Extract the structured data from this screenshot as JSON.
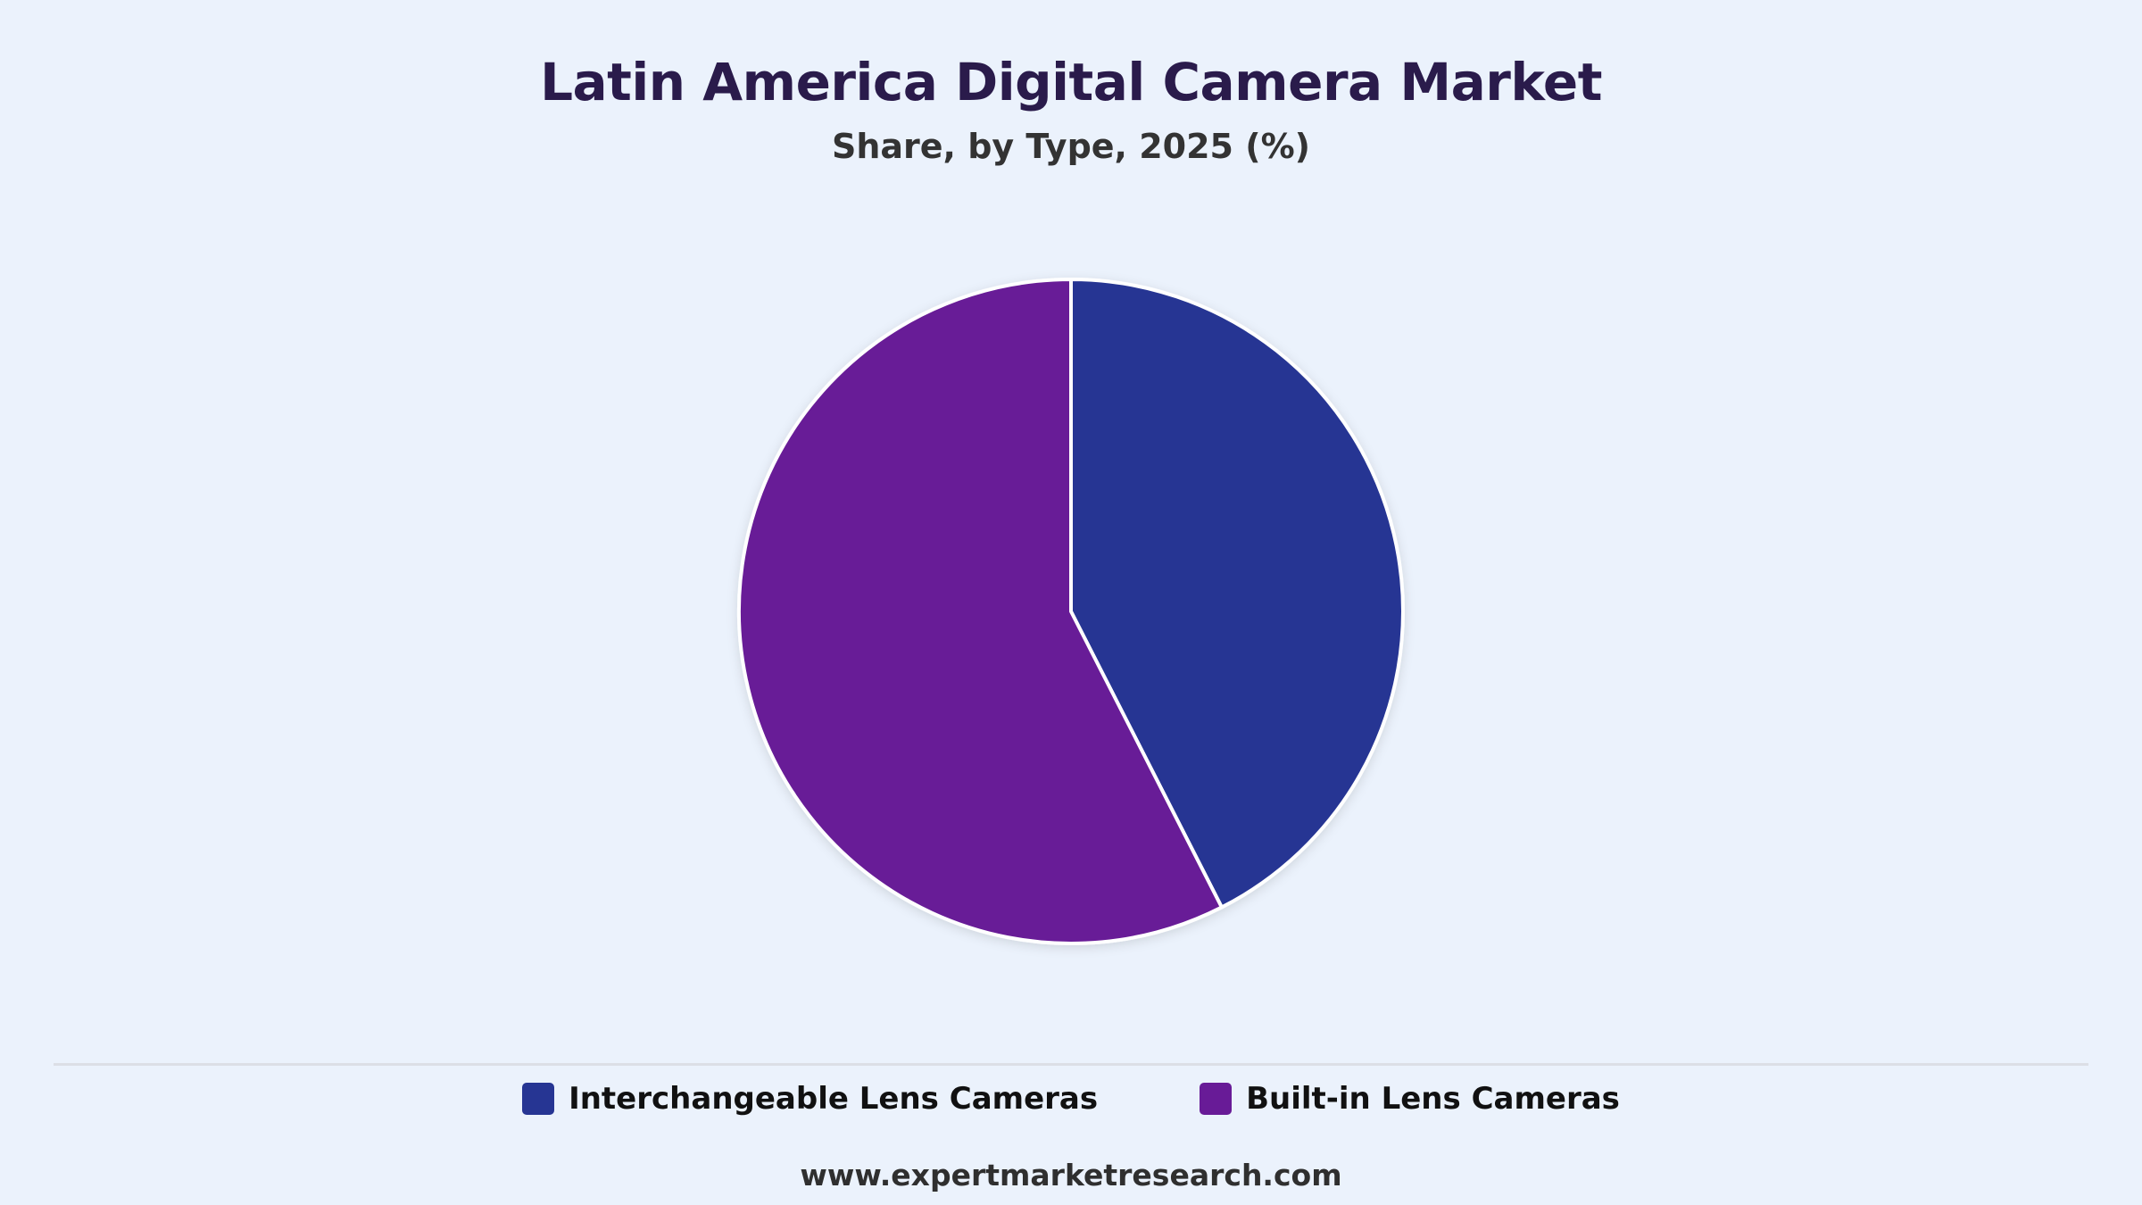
{
  "chart_data": {
    "type": "pie",
    "title": "Latin America Digital Camera Market",
    "subtitle": "Share, by Type, 2025 (%)",
    "categories": [
      "Interchangeable Lens Cameras",
      "Built-in Lens Cameras"
    ],
    "values": [
      42.5,
      57.5
    ],
    "colors": [
      "#263593",
      "#681b97"
    ],
    "legend_position": "bottom"
  },
  "footer": {
    "source": "www.expertmarketresearch.com"
  }
}
